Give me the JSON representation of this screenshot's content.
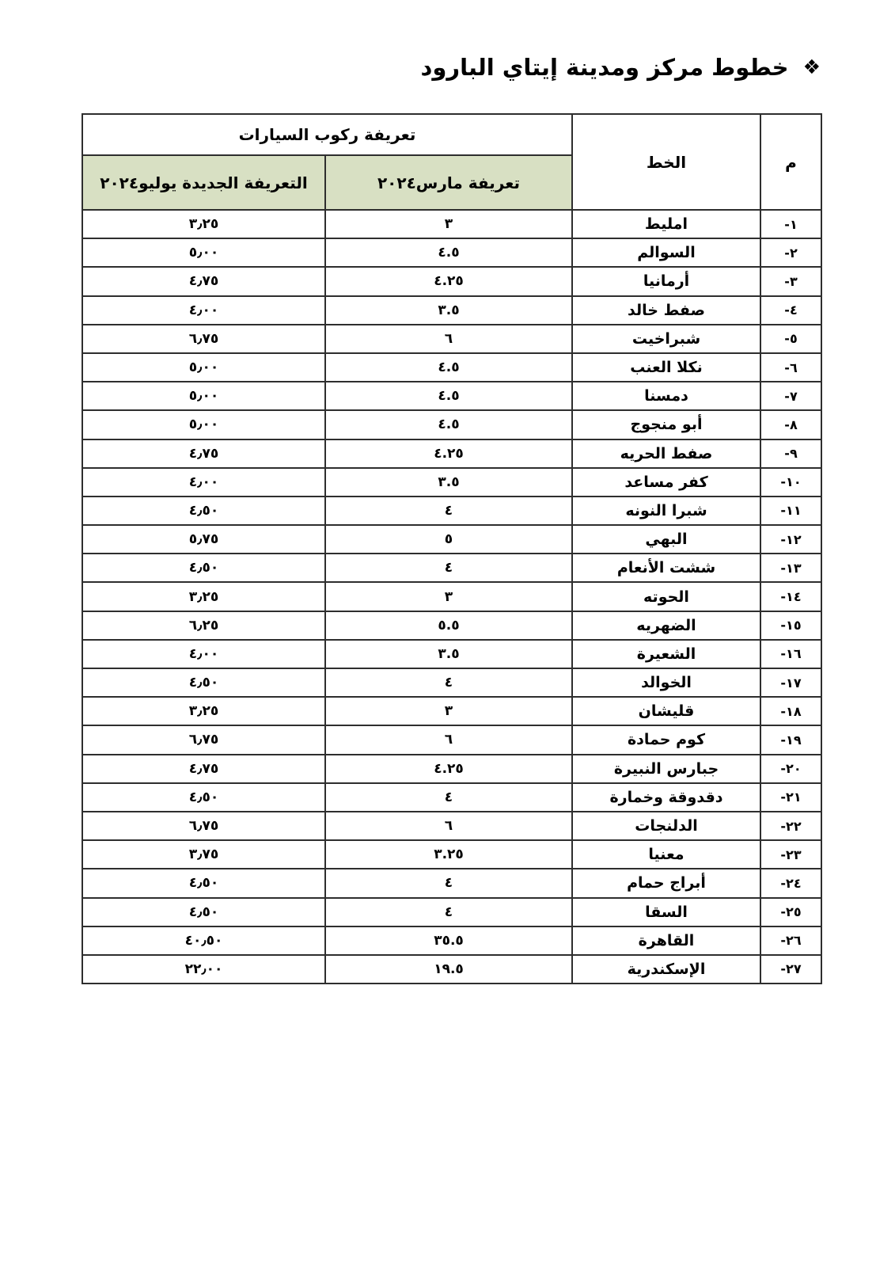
{
  "title": {
    "bullet": "❖",
    "text": "خطوط مركز ومدينة إيتاي البارود"
  },
  "colors": {
    "header_green": "#d8e0c3",
    "border": "#2e2e2e"
  },
  "table": {
    "header": {
      "num": "م",
      "line": "الخط",
      "fare_group": "تعريفة ركوب السيارات",
      "march": "تعريفة مارس٢٠٢٤",
      "new": "التعريفة الجديدة يوليو٢٠٢٤"
    },
    "rows": [
      {
        "num": "-١",
        "line": "امليط",
        "march": "٣",
        "new": "٣٫٢٥"
      },
      {
        "num": "-٢",
        "line": "السوالم",
        "march": "٤.٥",
        "new": "٥٫٠٠"
      },
      {
        "num": "-٣",
        "line": "أرمانيا",
        "march": "٤.٢٥",
        "new": "٤٫٧٥"
      },
      {
        "num": "-٤",
        "line": "صفط خالد",
        "march": "٣.٥",
        "new": "٤٫٠٠"
      },
      {
        "num": "-٥",
        "line": "شبراخيت",
        "march": "٦",
        "new": "٦٫٧٥"
      },
      {
        "num": "-٦",
        "line": "نكلا العنب",
        "march": "٤.٥",
        "new": "٥٫٠٠"
      },
      {
        "num": "-٧",
        "line": "دمسنا",
        "march": "٤.٥",
        "new": "٥٫٠٠"
      },
      {
        "num": "-٨",
        "line": "أبو منجوج",
        "march": "٤.٥",
        "new": "٥٫٠٠"
      },
      {
        "num": "-٩",
        "line": "صفط الحريه",
        "march": "٤.٢٥",
        "new": "٤٫٧٥"
      },
      {
        "num": "-١٠",
        "line": "كفر مساعد",
        "march": "٣.٥",
        "new": "٤٫٠٠"
      },
      {
        "num": "-١١",
        "line": "شبرا النونه",
        "march": "٤",
        "new": "٤٫٥٠"
      },
      {
        "num": "-١٢",
        "line": "البهي",
        "march": "٥",
        "new": "٥٫٧٥"
      },
      {
        "num": "-١٣",
        "line": "ششت الأنعام",
        "march": "٤",
        "new": "٤٫٥٠"
      },
      {
        "num": "-١٤",
        "line": "الحوته",
        "march": "٣",
        "new": "٣٫٢٥"
      },
      {
        "num": "-١٥",
        "line": "الضهريه",
        "march": "٥.٥",
        "new": "٦٫٢٥"
      },
      {
        "num": "-١٦",
        "line": "الشعيرة",
        "march": "٣.٥",
        "new": "٤٫٠٠"
      },
      {
        "num": "-١٧",
        "line": "الخوالد",
        "march": "٤",
        "new": "٤٫٥٠"
      },
      {
        "num": "-١٨",
        "line": "قليشان",
        "march": "٣",
        "new": "٣٫٢٥"
      },
      {
        "num": "-١٩",
        "line": "كوم حمادة",
        "march": "٦",
        "new": "٦٫٧٥"
      },
      {
        "num": "-٢٠",
        "line": "جبارس النبيرة",
        "march": "٤.٢٥",
        "new": "٤٫٧٥"
      },
      {
        "num": "-٢١",
        "line": "دقدوقة وخمارة",
        "march": "٤",
        "new": "٤٫٥٠"
      },
      {
        "num": "-٢٢",
        "line": "الدلنجات",
        "march": "٦",
        "new": "٦٫٧٥"
      },
      {
        "num": "-٢٣",
        "line": "معنيا",
        "march": "٣.٢٥",
        "new": "٣٫٧٥"
      },
      {
        "num": "-٢٤",
        "line": "أبراج حمام",
        "march": "٤",
        "new": "٤٫٥٠"
      },
      {
        "num": "-٢٥",
        "line": "السقا",
        "march": "٤",
        "new": "٤٫٥٠"
      },
      {
        "num": "-٢٦",
        "line": "القاهرة",
        "march": "٣٥.٥",
        "new": "٤٠٫٥٠"
      },
      {
        "num": "-٢٧",
        "line": "الإسكندرية",
        "march": "١٩.٥",
        "new": "٢٢٫٠٠"
      }
    ]
  }
}
